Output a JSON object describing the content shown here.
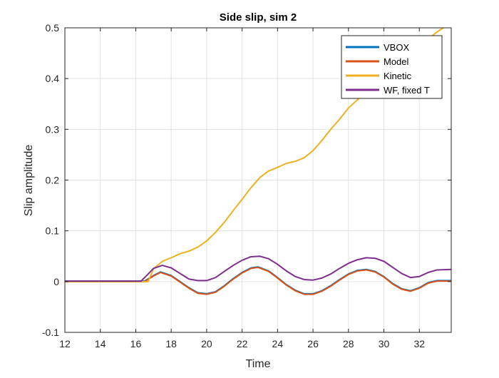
{
  "chart_data": {
    "type": "line",
    "title": "Side slip, sim 2",
    "xlabel": "Time",
    "ylabel": "Slip amplitude",
    "xlim": [
      12,
      33.8
    ],
    "ylim": [
      -0.1,
      0.5
    ],
    "xticks": [
      12,
      14,
      16,
      18,
      20,
      22,
      24,
      26,
      28,
      30,
      32
    ],
    "yticks": [
      -0.1,
      0,
      0.1,
      0.2,
      0.3,
      0.4,
      0.5
    ],
    "grid": true,
    "legend_position": "top-right",
    "series": [
      {
        "name": "VBOX",
        "color": "#0072bd",
        "x": [
          12.0,
          16.5,
          17.0,
          17.4,
          18.0,
          18.5,
          19.0,
          19.5,
          20.0,
          20.5,
          21.0,
          21.5,
          22.0,
          22.5,
          22.9,
          23.5,
          24.0,
          24.5,
          25.0,
          25.5,
          26.0,
          26.5,
          27.0,
          27.5,
          28.0,
          28.5,
          29.0,
          29.5,
          30.0,
          30.5,
          31.0,
          31.5,
          32.0,
          32.5,
          33.0,
          33.8
        ],
        "y": [
          0.001,
          0.001,
          0.012,
          0.019,
          0.012,
          0.0,
          -0.012,
          -0.022,
          -0.024,
          -0.02,
          -0.008,
          0.006,
          0.018,
          0.027,
          0.029,
          0.021,
          0.008,
          -0.006,
          -0.017,
          -0.024,
          -0.024,
          -0.018,
          -0.008,
          0.004,
          0.015,
          0.022,
          0.024,
          0.02,
          0.01,
          -0.004,
          -0.014,
          -0.018,
          -0.012,
          -0.002,
          0.002,
          0.002
        ]
      },
      {
        "name": "Model",
        "color": "#d95319",
        "x": [
          12.0,
          16.5,
          17.0,
          17.4,
          18.0,
          18.5,
          19.0,
          19.5,
          20.0,
          20.5,
          21.0,
          21.5,
          22.0,
          22.5,
          22.9,
          23.5,
          24.0,
          24.5,
          25.0,
          25.5,
          26.0,
          26.5,
          27.0,
          27.5,
          28.0,
          28.5,
          29.0,
          29.5,
          30.0,
          30.5,
          31.0,
          31.5,
          32.0,
          32.5,
          33.0,
          33.8
        ],
        "y": [
          0.0,
          0.0,
          0.011,
          0.018,
          0.011,
          -0.001,
          -0.013,
          -0.023,
          -0.025,
          -0.021,
          -0.009,
          0.005,
          0.017,
          0.026,
          0.028,
          0.02,
          0.007,
          -0.007,
          -0.018,
          -0.025,
          -0.025,
          -0.019,
          -0.009,
          0.003,
          0.014,
          0.021,
          0.023,
          0.019,
          0.009,
          -0.005,
          -0.015,
          -0.019,
          -0.013,
          -0.003,
          0.001,
          0.001
        ]
      },
      {
        "name": "Kinetic",
        "color": "#edb120",
        "x": [
          12.0,
          16.7,
          17.0,
          17.5,
          18.0,
          18.5,
          19.0,
          19.5,
          20.0,
          20.5,
          21.0,
          21.5,
          22.0,
          22.5,
          23.0,
          23.5,
          24.0,
          24.5,
          25.0,
          25.5,
          26.0,
          26.5,
          27.0,
          27.5,
          28.0,
          28.5,
          29.0,
          29.5,
          30.0,
          30.5,
          31.0,
          31.5,
          32.0,
          32.5,
          33.0,
          33.8
        ],
        "y": [
          0.0,
          0.0,
          0.025,
          0.04,
          0.047,
          0.055,
          0.06,
          0.068,
          0.08,
          0.097,
          0.117,
          0.14,
          0.162,
          0.185,
          0.205,
          0.218,
          0.225,
          0.233,
          0.237,
          0.244,
          0.258,
          0.278,
          0.3,
          0.32,
          0.342,
          0.358,
          0.372,
          0.385,
          0.398,
          0.412,
          0.428,
          0.445,
          0.462,
          0.478,
          0.492,
          0.51
        ]
      },
      {
        "name": "WF, fixed T",
        "color": "#7e2f8e",
        "x": [
          12.0,
          16.3,
          16.7,
          17.0,
          17.5,
          18.0,
          18.5,
          19.0,
          19.5,
          20.0,
          20.5,
          21.0,
          21.5,
          22.0,
          22.5,
          23.0,
          23.5,
          24.0,
          24.5,
          25.0,
          25.5,
          26.0,
          26.5,
          27.0,
          27.5,
          28.0,
          28.5,
          29.0,
          29.5,
          30.0,
          30.5,
          31.0,
          31.5,
          32.0,
          32.5,
          33.0,
          33.8
        ],
        "y": [
          0.001,
          0.001,
          0.015,
          0.026,
          0.032,
          0.027,
          0.016,
          0.005,
          0.002,
          0.002,
          0.008,
          0.02,
          0.032,
          0.042,
          0.049,
          0.05,
          0.045,
          0.034,
          0.021,
          0.01,
          0.004,
          0.003,
          0.007,
          0.015,
          0.026,
          0.036,
          0.043,
          0.047,
          0.046,
          0.04,
          0.028,
          0.016,
          0.008,
          0.01,
          0.018,
          0.023,
          0.024
        ]
      }
    ]
  }
}
